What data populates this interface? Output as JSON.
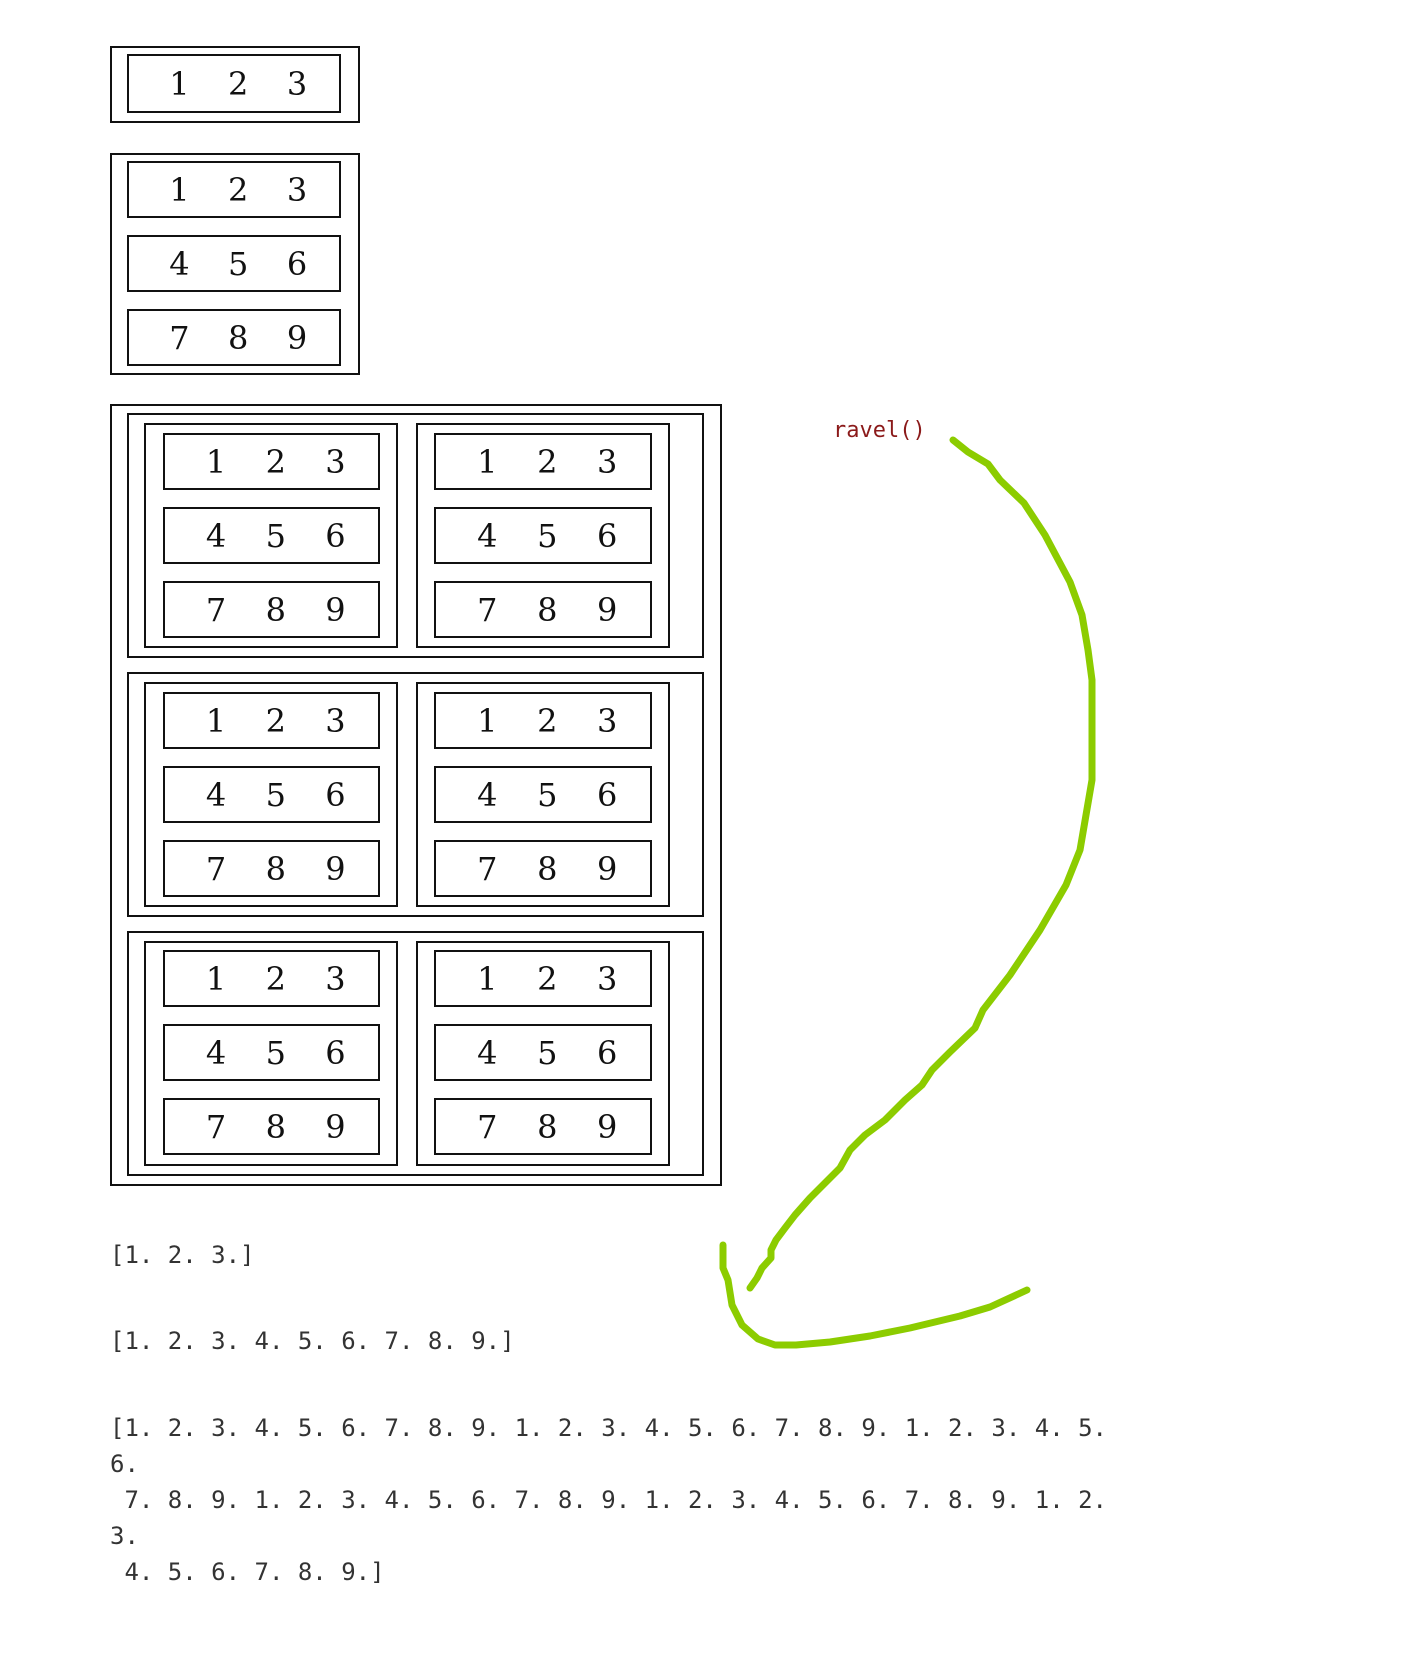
{
  "array_1d": {
    "row": [
      "1",
      "2",
      "3"
    ]
  },
  "array_2d": {
    "rows": [
      [
        "1",
        "2",
        "3"
      ],
      [
        "4",
        "5",
        "6"
      ],
      [
        "7",
        "8",
        "9"
      ]
    ]
  },
  "array_4d": {
    "block_rows": [
      [
        [
          [
            "1",
            "2",
            "3"
          ],
          [
            "4",
            "5",
            "6"
          ],
          [
            "7",
            "8",
            "9"
          ]
        ],
        [
          [
            "1",
            "2",
            "3"
          ],
          [
            "4",
            "5",
            "6"
          ],
          [
            "7",
            "8",
            "9"
          ]
        ]
      ],
      [
        [
          [
            "1",
            "2",
            "3"
          ],
          [
            "4",
            "5",
            "6"
          ],
          [
            "7",
            "8",
            "9"
          ]
        ],
        [
          [
            "1",
            "2",
            "3"
          ],
          [
            "4",
            "5",
            "6"
          ],
          [
            "7",
            "8",
            "9"
          ]
        ]
      ],
      [
        [
          [
            "1",
            "2",
            "3"
          ],
          [
            "4",
            "5",
            "6"
          ],
          [
            "7",
            "8",
            "9"
          ]
        ],
        [
          [
            "1",
            "2",
            "3"
          ],
          [
            "4",
            "5",
            "6"
          ],
          [
            "7",
            "8",
            "9"
          ]
        ]
      ]
    ]
  },
  "annotation": {
    "label": "ravel()",
    "label_color": "#8b1a1a",
    "arrow_color": "#8ccc00"
  },
  "outputs": {
    "out1": "[1. 2. 3.]",
    "out2": "[1. 2. 3. 4. 5. 6. 7. 8. 9.]",
    "out3": "[1. 2. 3. 4. 5. 6. 7. 8. 9. 1. 2. 3. 4. 5. 6. 7. 8. 9. 1. 2. 3. 4. 5.\n6.\n 7. 8. 9. 1. 2. 3. 4. 5. 6. 7. 8. 9. 1. 2. 3. 4. 5. 6. 7. 8. 9. 1. 2.\n3.\n 4. 5. 6. 7. 8. 9.]"
  }
}
